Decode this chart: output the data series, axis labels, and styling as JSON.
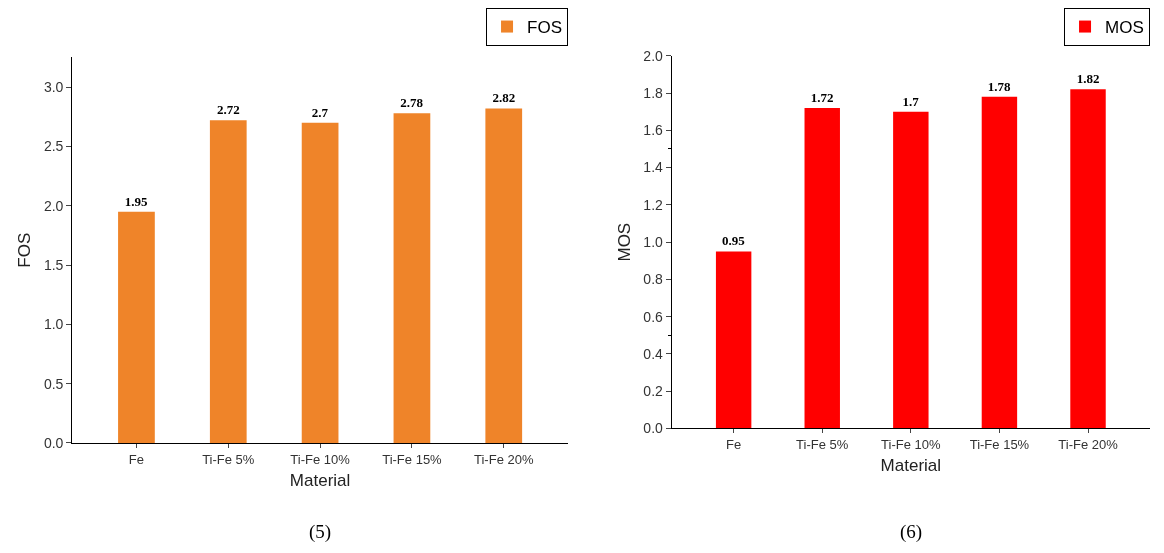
{
  "chart_data": [
    {
      "type": "bar",
      "xlabel": "Material",
      "ylabel": "FOS",
      "categories": [
        "Fe",
        "Ti-Fe 5%",
        "Ti-Fe 10%",
        "Ti-Fe 15%",
        "Ti-Fe 20%"
      ],
      "series": [
        {
          "name": "FOS",
          "color": "#ef8429",
          "values": [
            1.95,
            2.72,
            2.7,
            2.78,
            2.82
          ]
        }
      ],
      "ylim": [
        0,
        3.25
      ],
      "yticks": [
        {
          "value": 0,
          "label": "0.0"
        },
        {
          "value": 0.5,
          "label": "0.5"
        },
        {
          "value": 1,
          "label": "1.0"
        },
        {
          "value": 1.5,
          "label": "1.5"
        },
        {
          "value": 2,
          "label": "2.0"
        },
        {
          "value": 2.5,
          "label": "2.5"
        },
        {
          "value": 3,
          "label": "3.0"
        }
      ],
      "data_labels": true,
      "legend": "top right",
      "annotations": [
        "(5)"
      ]
    },
    {
      "type": "bar",
      "xlabel": "Material",
      "ylabel": "MOS",
      "categories": [
        "Fe",
        "Ti-Fe 5%",
        "Ti-Fe 10%",
        "Ti-Fe 15%",
        "Ti-Fe 20%"
      ],
      "series": [
        {
          "name": "MOS",
          "color": "#ff0000",
          "values": [
            0.95,
            1.72,
            1.7,
            1.78,
            1.82
          ]
        }
      ],
      "ylim": [
        0,
        2.0
      ],
      "yticks": [
        {
          "value": 0,
          "label": "0.0"
        },
        {
          "value": 0.2,
          "label": "0.2"
        },
        {
          "value": 0.4,
          "label": "0.4"
        },
        {
          "value": 0.6,
          "label": "0.6"
        },
        {
          "value": 0.8,
          "label": "0.8"
        },
        {
          "value": 1,
          "label": "1.0"
        },
        {
          "value": 1.2,
          "label": "1.2"
        },
        {
          "value": 1.4,
          "label": "1.4"
        },
        {
          "value": 1.6,
          "label": "1.6"
        },
        {
          "value": 1.8,
          "label": "1.8"
        },
        {
          "value": 2,
          "label": "2.0"
        }
      ],
      "data_labels": true,
      "legend": "top right",
      "annotations": [
        "(6)"
      ]
    }
  ]
}
